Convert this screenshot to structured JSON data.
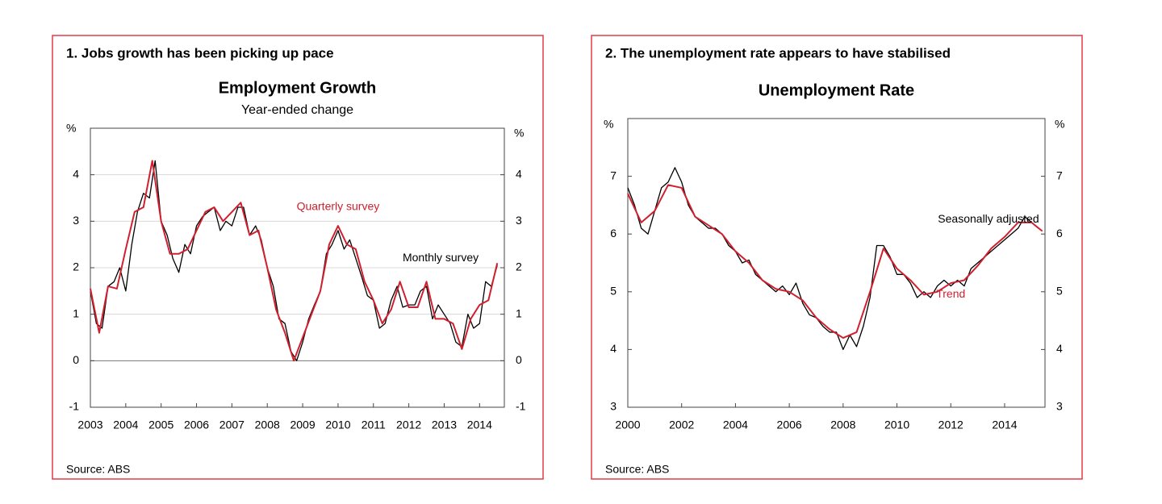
{
  "chart_data": [
    {
      "type": "line",
      "heading": "1. Jobs growth has been picking up pace",
      "title": "Employment Growth",
      "subtitle": "Year-ended change",
      "y_unit": "%",
      "source": "Source: ABS",
      "xlim": [
        2003,
        2014.7
      ],
      "xticks": [
        2003,
        2004,
        2005,
        2006,
        2007,
        2008,
        2009,
        2010,
        2011,
        2012,
        2013,
        2014
      ],
      "ylim": [
        -1,
        5
      ],
      "yticks": [
        -1,
        0,
        1,
        2,
        3,
        4
      ],
      "grid": true,
      "annotations": [
        {
          "text": "Quarterly survey",
          "color": "#d0202f"
        },
        {
          "text": "Monthly survey",
          "color": "#000000"
        }
      ],
      "series": [
        {
          "name": "Monthly survey",
          "color": "#000000",
          "x": [
            2003.0,
            2003.17,
            2003.33,
            2003.5,
            2003.67,
            2003.83,
            2004.0,
            2004.17,
            2004.33,
            2004.5,
            2004.67,
            2004.83,
            2005.0,
            2005.17,
            2005.33,
            2005.5,
            2005.67,
            2005.83,
            2006.0,
            2006.17,
            2006.33,
            2006.5,
            2006.67,
            2006.83,
            2007.0,
            2007.17,
            2007.33,
            2007.5,
            2007.67,
            2007.83,
            2008.0,
            2008.17,
            2008.33,
            2008.5,
            2008.67,
            2008.83,
            2009.0,
            2009.17,
            2009.33,
            2009.5,
            2009.67,
            2009.83,
            2010.0,
            2010.17,
            2010.33,
            2010.5,
            2010.67,
            2010.83,
            2011.0,
            2011.17,
            2011.33,
            2011.5,
            2011.67,
            2011.83,
            2012.0,
            2012.17,
            2012.33,
            2012.5,
            2012.67,
            2012.83,
            2013.0,
            2013.17,
            2013.33,
            2013.5,
            2013.67,
            2013.83,
            2014.0,
            2014.17,
            2014.33,
            2014.5
          ],
          "values": [
            1.5,
            0.8,
            0.7,
            1.6,
            1.7,
            2.0,
            1.5,
            2.5,
            3.2,
            3.6,
            3.5,
            4.3,
            3.0,
            2.7,
            2.2,
            1.9,
            2.5,
            2.3,
            2.9,
            3.1,
            3.2,
            3.3,
            2.8,
            3.0,
            2.9,
            3.3,
            3.3,
            2.7,
            2.9,
            2.6,
            2.0,
            1.6,
            0.9,
            0.8,
            0.2,
            0.0,
            0.4,
            0.9,
            1.2,
            1.5,
            2.3,
            2.5,
            2.8,
            2.4,
            2.6,
            2.2,
            1.8,
            1.4,
            1.3,
            0.7,
            0.8,
            1.3,
            1.6,
            1.15,
            1.2,
            1.2,
            1.5,
            1.6,
            0.9,
            1.2,
            1.0,
            0.8,
            0.4,
            0.3,
            1.0,
            0.7,
            0.8,
            1.7,
            1.6,
            2.05
          ]
        },
        {
          "name": "Quarterly survey",
          "color": "#d0202f",
          "x": [
            2003.0,
            2003.25,
            2003.5,
            2003.75,
            2004.0,
            2004.25,
            2004.5,
            2004.75,
            2005.0,
            2005.25,
            2005.5,
            2005.75,
            2006.0,
            2006.25,
            2006.5,
            2006.75,
            2007.0,
            2007.25,
            2007.5,
            2007.75,
            2008.0,
            2008.25,
            2008.5,
            2008.75,
            2009.0,
            2009.25,
            2009.5,
            2009.75,
            2010.0,
            2010.25,
            2010.5,
            2010.75,
            2011.0,
            2011.25,
            2011.5,
            2011.75,
            2012.0,
            2012.25,
            2012.5,
            2012.75,
            2013.0,
            2013.25,
            2013.5,
            2013.75,
            2014.0,
            2014.25,
            2014.5
          ],
          "values": [
            1.55,
            0.6,
            1.6,
            1.55,
            2.4,
            3.2,
            3.3,
            4.3,
            3.0,
            2.3,
            2.3,
            2.4,
            2.8,
            3.2,
            3.3,
            3.0,
            3.2,
            3.4,
            2.7,
            2.8,
            2.0,
            1.1,
            0.6,
            0.0,
            0.5,
            1.0,
            1.5,
            2.5,
            2.9,
            2.5,
            2.4,
            1.7,
            1.3,
            0.8,
            1.1,
            1.7,
            1.15,
            1.15,
            1.7,
            0.9,
            0.9,
            0.8,
            0.25,
            0.9,
            1.2,
            1.3,
            2.1
          ]
        }
      ]
    },
    {
      "type": "line",
      "heading": "2. The unemployment rate appears to have stabilised",
      "title": "Unemployment Rate",
      "y_unit": "%",
      "source": "Source: ABS",
      "xlim": [
        2000,
        2015.5
      ],
      "xticks": [
        2000,
        2002,
        2004,
        2006,
        2008,
        2010,
        2012,
        2014
      ],
      "ylim": [
        3,
        8
      ],
      "yticks": [
        3,
        4,
        5,
        6,
        7
      ],
      "grid": false,
      "annotations": [
        {
          "text": "Seasonally adjusted",
          "color": "#000000"
        },
        {
          "text": "Trend",
          "color": "#d0202f"
        }
      ],
      "series": [
        {
          "name": "Seasonally adjusted",
          "color": "#000000",
          "x": [
            2000.0,
            2000.25,
            2000.5,
            2000.75,
            2001.0,
            2001.25,
            2001.5,
            2001.75,
            2002.0,
            2002.25,
            2002.5,
            2002.75,
            2003.0,
            2003.25,
            2003.5,
            2003.75,
            2004.0,
            2004.25,
            2004.5,
            2004.75,
            2005.0,
            2005.25,
            2005.5,
            2005.75,
            2006.0,
            2006.25,
            2006.5,
            2006.75,
            2007.0,
            2007.25,
            2007.5,
            2007.75,
            2008.0,
            2008.25,
            2008.5,
            2008.75,
            2009.0,
            2009.25,
            2009.5,
            2009.75,
            2010.0,
            2010.25,
            2010.5,
            2010.75,
            2011.0,
            2011.25,
            2011.5,
            2011.75,
            2012.0,
            2012.25,
            2012.5,
            2012.75,
            2013.0,
            2013.25,
            2013.5,
            2013.75,
            2014.0,
            2014.25,
            2014.5,
            2014.75,
            2015.0,
            2015.25
          ],
          "values": [
            6.8,
            6.5,
            6.1,
            6.0,
            6.4,
            6.8,
            6.9,
            7.15,
            6.9,
            6.5,
            6.3,
            6.2,
            6.1,
            6.1,
            6.0,
            5.8,
            5.7,
            5.5,
            5.55,
            5.3,
            5.2,
            5.1,
            5.0,
            5.1,
            4.95,
            5.15,
            4.8,
            4.6,
            4.55,
            4.4,
            4.3,
            4.3,
            4.0,
            4.25,
            4.05,
            4.4,
            4.9,
            5.8,
            5.8,
            5.6,
            5.3,
            5.3,
            5.15,
            4.9,
            5.0,
            4.9,
            5.1,
            5.2,
            5.1,
            5.2,
            5.1,
            5.4,
            5.5,
            5.6,
            5.7,
            5.8,
            5.9,
            6.0,
            6.1,
            6.3,
            6.2,
            6.1
          ]
        },
        {
          "name": "Trend",
          "color": "#d0202f",
          "x": [
            2000.0,
            2000.5,
            2001.0,
            2001.5,
            2002.0,
            2002.5,
            2003.0,
            2003.5,
            2004.0,
            2004.5,
            2005.0,
            2005.5,
            2006.0,
            2006.5,
            2007.0,
            2007.5,
            2008.0,
            2008.5,
            2009.0,
            2009.5,
            2010.0,
            2010.5,
            2011.0,
            2011.5,
            2012.0,
            2012.5,
            2013.0,
            2013.5,
            2014.0,
            2014.5,
            2015.0,
            2015.4
          ],
          "values": [
            6.7,
            6.2,
            6.4,
            6.85,
            6.8,
            6.3,
            6.15,
            6.0,
            5.7,
            5.5,
            5.2,
            5.05,
            5.0,
            4.85,
            4.55,
            4.35,
            4.2,
            4.3,
            5.0,
            5.75,
            5.4,
            5.2,
            4.95,
            5.0,
            5.15,
            5.2,
            5.45,
            5.75,
            5.95,
            6.2,
            6.2,
            6.05
          ]
        }
      ]
    }
  ]
}
